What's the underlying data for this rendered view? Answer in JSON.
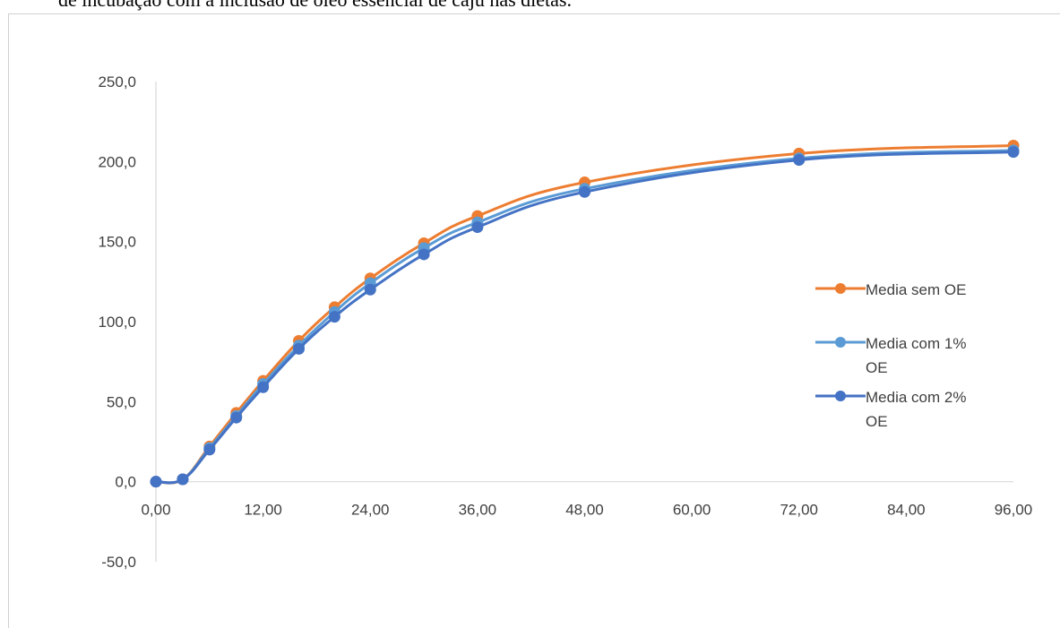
{
  "caption": "de incubação com a inclusão de óleo essencial de caju nas dietas.",
  "chart_data": {
    "type": "line",
    "title": "",
    "xlabel": "",
    "ylabel": "",
    "xlim": [
      0,
      96
    ],
    "ylim": [
      -50,
      250
    ],
    "x_ticks": [
      "0,00",
      "12,00",
      "24,00",
      "36,00",
      "48,00",
      "60,00",
      "72,00",
      "84,00",
      "96,00"
    ],
    "y_ticks": [
      "250,0",
      "200,0",
      "150,0",
      "100,0",
      "50,0",
      "0,0",
      "-50,0"
    ],
    "x": [
      0,
      3,
      6,
      9,
      12,
      16,
      20,
      24,
      30,
      36,
      48,
      72,
      96
    ],
    "series": [
      {
        "name": "Media sem OE",
        "color": "#ED7D31",
        "values": [
          0.0,
          1.5,
          22.0,
          43.0,
          63.0,
          88.0,
          109.0,
          127.0,
          149.0,
          166.0,
          187.0,
          205.0,
          210.0
        ]
      },
      {
        "name": "Media com 1% OE",
        "color": "#5B9BD5",
        "values": [
          0.0,
          1.5,
          21.0,
          41.0,
          61.0,
          85.0,
          106.0,
          124.0,
          146.0,
          162.0,
          183.0,
          202.0,
          207.0
        ]
      },
      {
        "name": "Media com 2% OE",
        "color": "#4472C4",
        "values": [
          0.0,
          1.5,
          20.0,
          40.0,
          59.0,
          83.0,
          103.0,
          120.0,
          142.0,
          159.0,
          181.0,
          201.0,
          206.0
        ]
      }
    ],
    "legend_position": "right",
    "grid": false
  }
}
